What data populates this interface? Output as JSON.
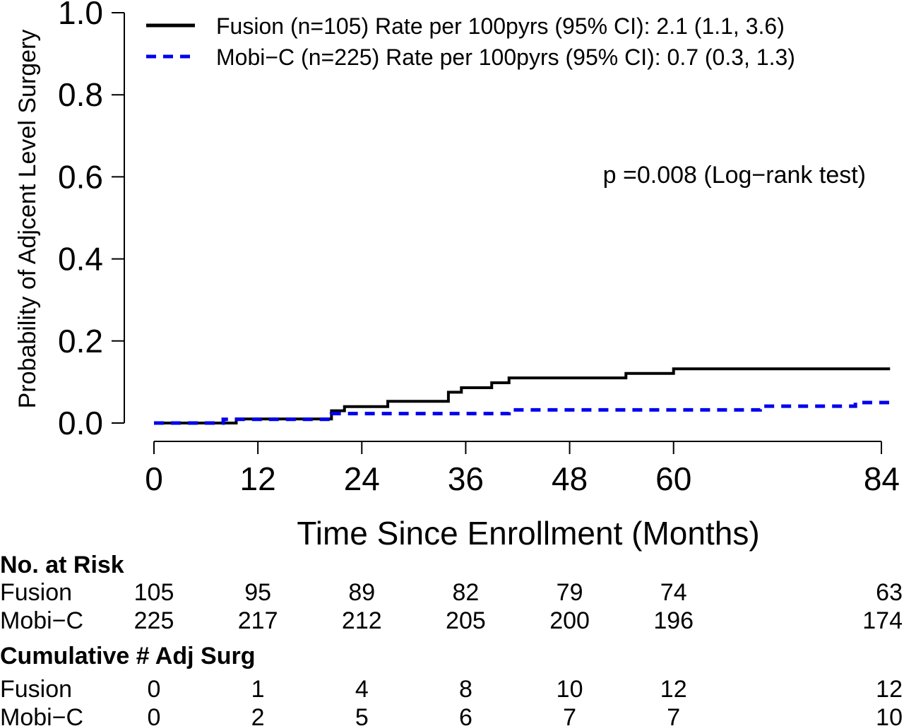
{
  "chart_data": {
    "type": "line",
    "step": true,
    "xlabel": "Time Since Enrollment (Months)",
    "ylabel": "Probability of Adjcent Level Surgery",
    "xlim": [
      0,
      84
    ],
    "ylim": [
      0,
      1
    ],
    "x_ticks": [
      0,
      12,
      24,
      36,
      48,
      60,
      84
    ],
    "y_ticks": [
      "0.0",
      "0.2",
      "0.4",
      "0.6",
      "0.8",
      "1.0"
    ],
    "y_tick_values": [
      0,
      0.2,
      0.4,
      0.6,
      0.8,
      1.0
    ],
    "grid": false,
    "legend_position": "top",
    "annotation": "p =0.008 (Log−rank test)",
    "series": [
      {
        "name": "Fusion (n=105) Rate per 100pyrs (95% CI): 2.1 (1.1, 3.6)",
        "color": "#000000",
        "line_style": "solid",
        "x": [
          0,
          9.5,
          20.5,
          22,
          27,
          34,
          35.5,
          39,
          41,
          54.5,
          60,
          85
        ],
        "y": [
          0,
          0.01,
          0.03,
          0.04,
          0.053,
          0.075,
          0.086,
          0.098,
          0.11,
          0.121,
          0.132,
          0.132
        ]
      },
      {
        "name": "Mobi−C (n=225) Rate per 100pyrs (95% CI): 0.7 (0.3, 1.3)",
        "color": "#0000ee",
        "line_style": "dashed",
        "x": [
          0,
          8,
          20.5,
          23,
          41,
          70,
          78,
          81,
          85
        ],
        "y": [
          0,
          0.009,
          0.023,
          0.023,
          0.032,
          0.041,
          0.041,
          0.05,
          0.05
        ]
      }
    ],
    "risk_table": {
      "title": "No. at Risk",
      "columns": [
        0,
        12,
        24,
        36,
        48,
        60,
        84
      ],
      "rows": [
        {
          "label": "Fusion",
          "values": [
            "105",
            "95",
            "89",
            "82",
            "79",
            "74",
            "63"
          ]
        },
        {
          "label": "Mobi−C",
          "values": [
            "225",
            "217",
            "212",
            "205",
            "200",
            "196",
            "174"
          ]
        }
      ]
    },
    "cumulative_table": {
      "title": "Cumulative # Adj Surg",
      "columns": [
        0,
        12,
        24,
        36,
        48,
        60,
        84
      ],
      "rows": [
        {
          "label": "Fusion",
          "values": [
            "0",
            "1",
            "4",
            "8",
            "10",
            "12",
            "12"
          ]
        },
        {
          "label": "Mobi−C",
          "values": [
            "0",
            "2",
            "5",
            "6",
            "7",
            "7",
            "10"
          ]
        }
      ]
    }
  }
}
